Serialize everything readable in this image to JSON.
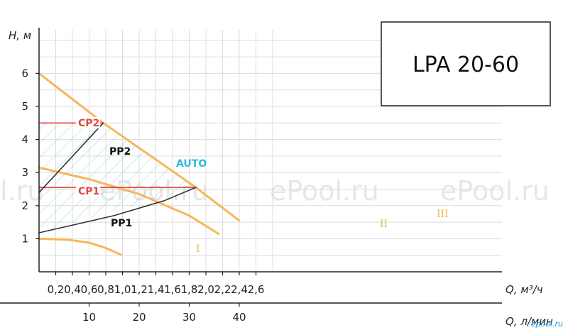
{
  "model_title": "LPA 20-60",
  "watermarks": [
    "l.ru",
    "ePool.ru",
    "ePool.ru",
    "ePool.ru"
  ],
  "corner_logo": "epool.ru",
  "colors": {
    "curve_orange": "#f5b75a",
    "cp_red": "#e2473f",
    "pp_dark": "#333333",
    "auto_blue": "#33b8d8",
    "grid": "#dcdcdc",
    "axis": "#222222"
  },
  "chart_data": {
    "type": "line",
    "title": "LPA 20-60",
    "ylabel": "H, м",
    "xlabel": "Q, м³/ч",
    "x2label": "Q, л/мин",
    "ylim": [
      0,
      6.5
    ],
    "xlim": [
      0,
      2.95
    ],
    "yticks": [
      "1",
      "2",
      "3",
      "4",
      "5",
      "6"
    ],
    "xticks": [
      "0,2",
      "0,4",
      "0,6",
      "0,8",
      "1,0",
      "1,2",
      "1,4",
      "1,6",
      "1,8",
      "2,0",
      "2,2",
      "2,4",
      "2,6"
    ],
    "x2ticks": [
      "10",
      "20",
      "30",
      "40"
    ],
    "grid": true,
    "series": [
      {
        "name": "I",
        "points": [
          [
            0,
            1.0
          ],
          [
            0.35,
            0.97
          ],
          [
            0.6,
            0.88
          ],
          [
            0.8,
            0.72
          ],
          [
            0.98,
            0.52
          ]
        ]
      },
      {
        "name": "II",
        "points": [
          [
            0,
            3.15
          ],
          [
            0.6,
            2.8
          ],
          [
            1.2,
            2.35
          ],
          [
            1.8,
            1.7
          ],
          [
            2.15,
            1.15
          ]
        ]
      },
      {
        "name": "III",
        "points": [
          [
            0,
            6.0
          ],
          [
            0.77,
            4.5
          ],
          [
            1.88,
            2.55
          ],
          [
            2.4,
            1.55
          ]
        ]
      },
      {
        "name": "CP2",
        "points": [
          [
            0,
            4.5
          ],
          [
            0.77,
            4.5
          ]
        ]
      },
      {
        "name": "CP1",
        "points": [
          [
            0,
            2.55
          ],
          [
            1.88,
            2.55
          ]
        ]
      },
      {
        "name": "PP2",
        "points": [
          [
            0,
            2.4
          ],
          [
            0.77,
            4.5
          ]
        ]
      },
      {
        "name": "PP1",
        "points": [
          [
            0,
            1.18
          ],
          [
            0.9,
            1.7
          ],
          [
            1.5,
            2.15
          ],
          [
            1.88,
            2.55
          ]
        ]
      }
    ],
    "annotations": [
      {
        "text": "AUTO",
        "region": [
          [
            0,
            4.5
          ],
          [
            0.77,
            4.5
          ],
          [
            1.88,
            2.55
          ],
          [
            0,
            1.18
          ]
        ]
      }
    ]
  }
}
